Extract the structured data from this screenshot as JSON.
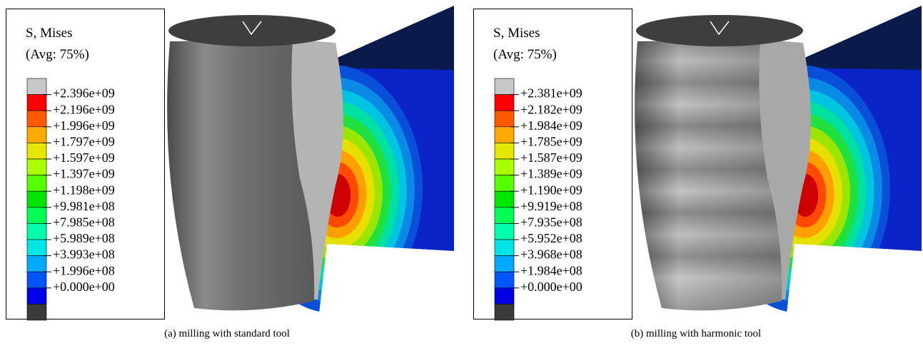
{
  "panels": [
    {
      "legend": {
        "title": "S, Mises",
        "subtitle": "(Avg: 75%)",
        "labels": [
          "+2.396e+09",
          "+2.196e+09",
          "+1.996e+09",
          "+1.797e+09",
          "+1.597e+09",
          "+1.397e+09",
          "+1.198e+09",
          "+9.981e+08",
          "+7.985e+08",
          "+5.989e+08",
          "+3.993e+08",
          "+1.996e+08",
          "+0.000e+00"
        ]
      },
      "caption": "(a)  milling with standard tool"
    },
    {
      "legend": {
        "title": "S, Mises",
        "subtitle": "(Avg: 75%)",
        "labels": [
          "+2.381e+09",
          "+2.182e+09",
          "+1.984e+09",
          "+1.785e+09",
          "+1.587e+09",
          "+1.389e+09",
          "+1.190e+09",
          "+9.919e+08",
          "+7.935e+08",
          "+5.952e+08",
          "+3.968e+08",
          "+1.984e+08",
          "+0.000e+00"
        ]
      },
      "caption": "(b)  milling with harmonic tool"
    }
  ]
}
